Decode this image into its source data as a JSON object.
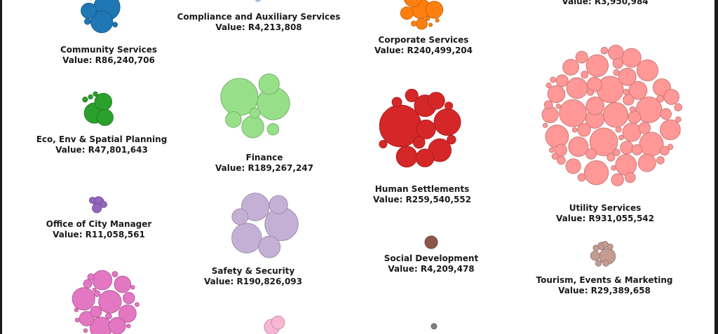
{
  "chart_data": {
    "type": "bubble-cluster",
    "currency": "R",
    "groups": [
      {
        "key": "community",
        "name": "Community Services",
        "value": "Value: R86,240,706",
        "color": "#1f77b4",
        "stroke": "#185f90"
      },
      {
        "key": "compliance",
        "name": "Compliance and Auxiliary Services",
        "value": "Value: R4,213,808",
        "color": "#aec7e8",
        "stroke": "#8ba0bb"
      },
      {
        "key": "corporate",
        "name": "Corporate Services",
        "value": "Value: R240,499,204",
        "color": "#ff7f0e",
        "stroke": "#cc660b"
      },
      {
        "key": "top-right",
        "name": "",
        "value": "Value: R3,950,984",
        "color": "#ffbb78",
        "stroke": "#cc9660"
      },
      {
        "key": "eco",
        "name": "Eco, Env & Spatial Planning",
        "value": "Value: R47,801,643",
        "color": "#2ca02c",
        "stroke": "#238023"
      },
      {
        "key": "finance",
        "name": "Finance",
        "value": "Value: R189,267,247",
        "color": "#98df8a",
        "stroke": "#7ab26e"
      },
      {
        "key": "human",
        "name": "Human Settlements",
        "value": "Value: R259,540,552",
        "color": "#d62728",
        "stroke": "#ab1f20"
      },
      {
        "key": "utility",
        "name": "Utility Services",
        "value": "Value: R931,055,542",
        "color": "#ff9896",
        "stroke": "#cc7a78"
      },
      {
        "key": "office",
        "name": "Office of City Manager",
        "value": "Value: R11,058,561",
        "color": "#9467bd",
        "stroke": "#765297"
      },
      {
        "key": "safety",
        "name": "Safety & Security",
        "value": "Value: R190,826,093",
        "color": "#c5b0d5",
        "stroke": "#9e8daa"
      },
      {
        "key": "social",
        "name": "Social Development",
        "value": "Value: R4,209,478",
        "color": "#8c564b",
        "stroke": "#70453c"
      },
      {
        "key": "tourism",
        "name": "Tourism, Events & Marketing",
        "value": "Value: R29,389,658",
        "color": "#c49c94",
        "stroke": "#9d7d76"
      },
      {
        "key": "bottom-left",
        "name": "",
        "value": "",
        "color": "#e377c2",
        "stroke": "#b65f9b"
      },
      {
        "key": "bottom-mid",
        "name": "",
        "value": "",
        "color": "#f7b6d2",
        "stroke": "#c692a8"
      },
      {
        "key": "bottom-right",
        "name": "",
        "value": "",
        "color": "#7f7f7f",
        "stroke": "#666666"
      }
    ]
  }
}
